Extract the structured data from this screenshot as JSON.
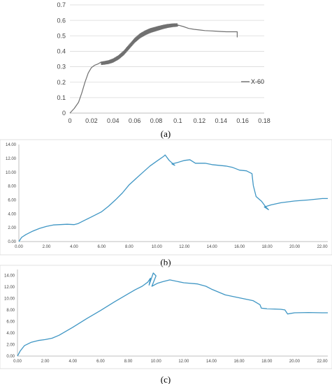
{
  "figure": {
    "panel_labels": [
      "(a)",
      "(b)",
      "(c)"
    ]
  },
  "chart_data": [
    {
      "type": "line",
      "panel": "(a)",
      "xlim": [
        0,
        0.18
      ],
      "ylim": [
        0,
        0.7
      ],
      "xticks": [
        "0",
        "0.02",
        "0.04",
        "0.06",
        "0.08",
        "0.1",
        "0.12",
        "0.14",
        "0.16",
        "0.18"
      ],
      "yticks": [
        "0",
        "0.1",
        "0.2",
        "0.3",
        "0.4",
        "0.5",
        "0.6",
        "0.7"
      ],
      "grid": "horizontal",
      "legend": "right",
      "color": "#707070",
      "series": [
        {
          "name": "X-60",
          "x": [
            0,
            0.004,
            0.008,
            0.011,
            0.014,
            0.017,
            0.02,
            0.023,
            0.026,
            0.029,
            0.032,
            0.036,
            0.04,
            0.045,
            0.05,
            0.055,
            0.06,
            0.065,
            0.07,
            0.075,
            0.08,
            0.085,
            0.09,
            0.095,
            0.1,
            0.105,
            0.11,
            0.115,
            0.12,
            0.125,
            0.13,
            0.135,
            0.14,
            0.145,
            0.15,
            0.155,
            0.155
          ],
          "y": [
            0,
            0.03,
            0.07,
            0.13,
            0.2,
            0.26,
            0.295,
            0.31,
            0.318,
            0.322,
            0.325,
            0.33,
            0.34,
            0.36,
            0.39,
            0.43,
            0.47,
            0.5,
            0.52,
            0.535,
            0.545,
            0.555,
            0.563,
            0.568,
            0.57,
            0.56,
            0.548,
            0.542,
            0.538,
            0.534,
            0.532,
            0.53,
            0.528,
            0.526,
            0.526,
            0.526,
            0.49
          ]
        }
      ],
      "oscillation": {
        "x_range": [
          0.029,
          0.1
        ],
        "amplitude": 0.028
      }
    },
    {
      "type": "line",
      "panel": "(b)",
      "xlim": [
        0,
        22.4
      ],
      "ylim": [
        0,
        14
      ],
      "xticks": [
        "0.00",
        "2.00",
        "4.00",
        "6.00",
        "8.00",
        "10.00",
        "12.00",
        "14.00",
        "16.00",
        "18.00",
        "20.00",
        "22.00"
      ],
      "yticks": [
        "0.00",
        "2.00",
        "4.00",
        "6.00",
        "8.00",
        "10.00",
        "12.00",
        "14.00"
      ],
      "color": "#3f96c4",
      "series": [
        {
          "x": [
            0,
            0.2,
            0.5,
            1.0,
            1.5,
            2.0,
            2.5,
            3.0,
            3.5,
            4.0,
            4.3,
            4.8,
            5.2,
            5.6,
            6.0,
            6.5,
            7.0,
            7.5,
            8.0,
            8.5,
            9.0,
            9.5,
            10.0,
            10.5,
            10.6,
            10.9,
            11.3,
            11.1,
            11.5,
            12.0,
            12.4,
            12.8,
            13.5,
            14.0,
            14.5,
            15.0,
            15.5,
            16.0,
            16.5,
            16.9,
            17.0,
            17.2,
            17.6,
            17.9,
            18.1,
            17.8,
            18.3,
            19.0,
            20.0,
            21.0,
            22.0,
            22.4
          ],
          "y": [
            0,
            0.6,
            1.0,
            1.5,
            1.9,
            2.2,
            2.4,
            2.45,
            2.5,
            2.45,
            2.6,
            3.1,
            3.5,
            3.9,
            4.3,
            5.1,
            6.0,
            7.0,
            8.2,
            9.1,
            10.0,
            10.9,
            11.6,
            12.3,
            12.5,
            11.7,
            11.0,
            11.2,
            11.4,
            11.7,
            11.8,
            11.3,
            11.3,
            11.1,
            11.0,
            10.9,
            10.7,
            10.3,
            10.2,
            9.8,
            8.1,
            6.5,
            5.8,
            5.0,
            4.6,
            5.0,
            5.3,
            5.6,
            5.85,
            6.0,
            6.2,
            6.2
          ]
        }
      ]
    },
    {
      "type": "line",
      "panel": "(c)",
      "xlim": [
        0,
        22.4
      ],
      "ylim": [
        0,
        15
      ],
      "xticks": [
        "0.00",
        "2.00",
        "4.00",
        "6.00",
        "8.00",
        "10.00",
        "12.00",
        "14.00",
        "16.00",
        "18.00",
        "20.00",
        "22.00"
      ],
      "yticks": [
        "0.00",
        "2.00",
        "4.00",
        "6.00",
        "8.00",
        "10.00",
        "12.00",
        "14.00"
      ],
      "color": "#3f96c4",
      "series": [
        {
          "x": [
            0,
            0.2,
            0.5,
            1.0,
            1.5,
            2.0,
            2.5,
            3.0,
            4.0,
            5.0,
            6.0,
            7.0,
            8.0,
            8.5,
            9.0,
            9.4,
            9.6,
            9.5,
            9.8,
            10.0,
            9.7,
            10.1,
            10.5,
            11.0,
            12.0,
            13.0,
            13.6,
            14.0,
            15.0,
            16.0,
            17.0,
            17.5,
            17.6,
            18.0,
            19.0,
            19.3,
            19.5,
            20.0,
            21.0,
            22.0,
            22.4
          ],
          "y": [
            0,
            0.9,
            1.8,
            2.4,
            2.7,
            2.85,
            3.1,
            3.6,
            5.0,
            6.5,
            7.9,
            9.4,
            10.8,
            11.5,
            12.1,
            12.8,
            13.5,
            12.3,
            14.4,
            13.9,
            12.1,
            12.6,
            12.9,
            13.2,
            12.7,
            12.5,
            12.1,
            11.6,
            10.6,
            10.1,
            9.6,
            8.9,
            8.3,
            8.2,
            8.1,
            8.0,
            7.3,
            7.5,
            7.55,
            7.5,
            7.5
          ]
        }
      ]
    }
  ]
}
